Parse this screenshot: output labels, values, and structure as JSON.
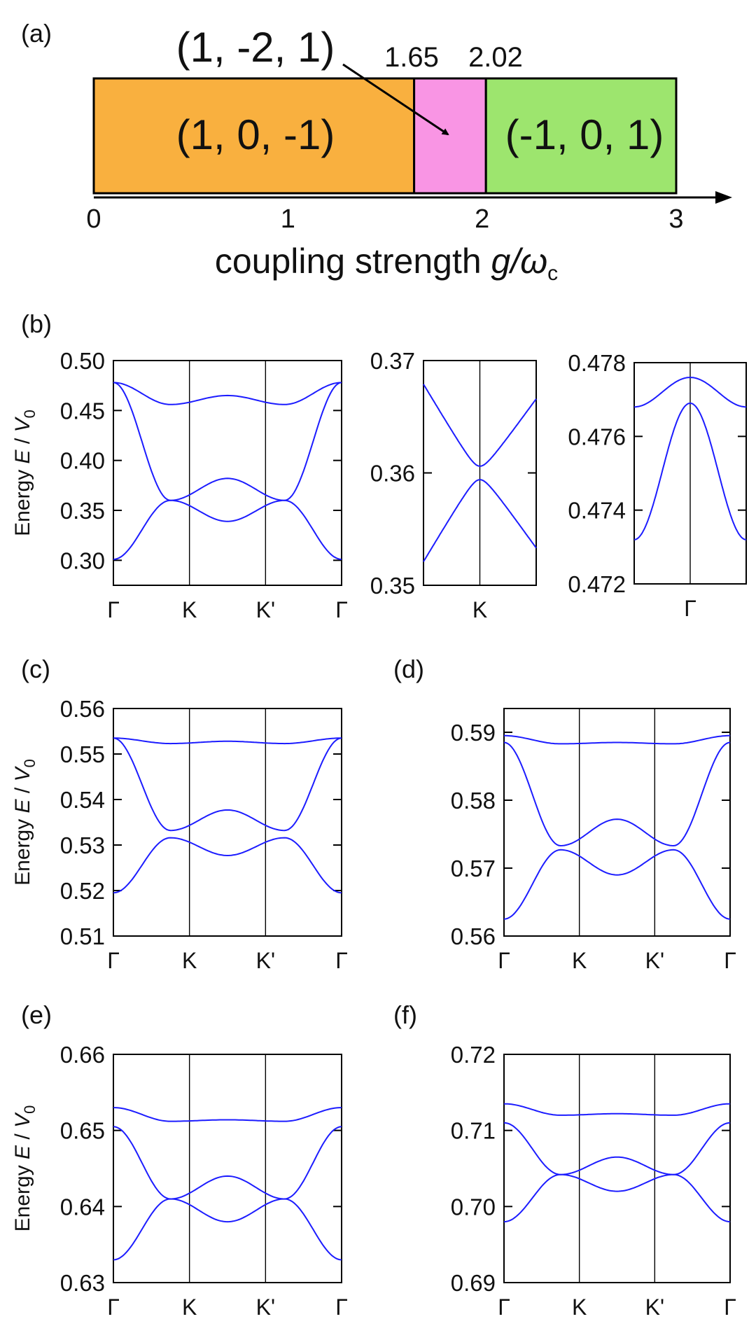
{
  "chart_data": [
    {
      "panel": "(a)",
      "type": "phase-bar",
      "xlabel_prefix": "coupling strength ",
      "xlabel_var": "g/ω",
      "xlabel_sub": "c",
      "xlim": [
        0,
        3
      ],
      "ticks": [
        "0",
        "1",
        "2",
        "3"
      ],
      "boundary_labels": [
        "1.65",
        "2.02"
      ],
      "regions": [
        {
          "from": 0,
          "to": 1.65,
          "label": "(1, 0, -1)",
          "color": "#f9b03f"
        },
        {
          "from": 1.65,
          "to": 2.02,
          "label": "(1, -2, 1)",
          "color": "#f995e4"
        },
        {
          "from": 2.02,
          "to": 3.0,
          "label": "(-1, 0, 1)",
          "color": "#9de56e"
        }
      ]
    },
    {
      "panel": "(b)",
      "type": "line",
      "ylabel": "Energy E / V0",
      "ylim": [
        0.275,
        0.5
      ],
      "yticks": [
        "0.30",
        "0.35",
        "0.40",
        "0.45",
        "0.50"
      ],
      "xticks": [
        "Γ",
        "K",
        "K'",
        "Γ"
      ],
      "series": [
        {
          "values": [
            0.478,
            0.456,
            0.465,
            0.456,
            0.478
          ]
        },
        {
          "values": [
            0.478,
            0.36,
            0.382,
            0.36,
            0.478
          ]
        },
        {
          "values": [
            0.301,
            0.36,
            0.339,
            0.36,
            0.301
          ]
        }
      ]
    },
    {
      "panel": "(b) inset K",
      "type": "line",
      "ylim": [
        0.35,
        0.37
      ],
      "yticks": [
        "0.35",
        "0.36",
        "0.37"
      ],
      "xticks": [
        "K"
      ],
      "series": [
        {
          "values": [
            0.369,
            0.3606,
            0.3675
          ]
        },
        {
          "values": [
            0.351,
            0.3594,
            0.3524
          ]
        }
      ]
    },
    {
      "panel": "(b) inset Γ",
      "type": "line",
      "ylim": [
        0.472,
        0.478
      ],
      "yticks": [
        "0.472",
        "0.474",
        "0.476",
        "0.478"
      ],
      "xticks": [
        "Γ"
      ],
      "series": [
        {
          "values": [
            0.4768,
            0.4776,
            0.4768
          ]
        },
        {
          "values": [
            0.4732,
            0.4769,
            0.4732
          ]
        }
      ]
    },
    {
      "panel": "(c)",
      "type": "line",
      "ylabel": "Energy E / V0",
      "ylim": [
        0.51,
        0.56
      ],
      "yticks": [
        "0.51",
        "0.52",
        "0.53",
        "0.54",
        "0.55",
        "0.56"
      ],
      "xticks": [
        "Γ",
        "K",
        "K'",
        "Γ"
      ],
      "series": [
        {
          "values": [
            0.5535,
            0.5523,
            0.5528,
            0.5523,
            0.5535
          ]
        },
        {
          "values": [
            0.5535,
            0.5332,
            0.5377,
            0.5332,
            0.5535
          ]
        },
        {
          "values": [
            0.5195,
            0.5316,
            0.5277,
            0.5316,
            0.5195
          ]
        }
      ]
    },
    {
      "panel": "(d)",
      "type": "line",
      "ylim": [
        0.56,
        0.5935
      ],
      "yticks": [
        "0.56",
        "0.57",
        "0.58",
        "0.59"
      ],
      "xticks": [
        "Γ",
        "K",
        "K'",
        "Γ"
      ],
      "series": [
        {
          "values": [
            0.5895,
            0.5883,
            0.5885,
            0.5883,
            0.5895
          ]
        },
        {
          "values": [
            0.5885,
            0.5733,
            0.5772,
            0.5733,
            0.5885
          ]
        },
        {
          "values": [
            0.5625,
            0.5727,
            0.569,
            0.5727,
            0.5625
          ]
        }
      ]
    },
    {
      "panel": "(e)",
      "type": "line",
      "ylabel": "Energy E / V0",
      "ylim": [
        0.63,
        0.66
      ],
      "yticks": [
        "0.63",
        "0.64",
        "0.65",
        "0.66"
      ],
      "xticks": [
        "Γ",
        "K",
        "K'",
        "Γ"
      ],
      "series": [
        {
          "values": [
            0.653,
            0.6512,
            0.6514,
            0.6512,
            0.653
          ]
        },
        {
          "values": [
            0.6505,
            0.641,
            0.644,
            0.641,
            0.6505
          ]
        },
        {
          "values": [
            0.633,
            0.641,
            0.638,
            0.641,
            0.633
          ]
        }
      ]
    },
    {
      "panel": "(f)",
      "type": "line",
      "ylim": [
        0.69,
        0.72
      ],
      "yticks": [
        "0.69",
        "0.70",
        "0.71",
        "0.72"
      ],
      "xticks": [
        "Γ",
        "K",
        "K'",
        "Γ"
      ],
      "series": [
        {
          "values": [
            0.7135,
            0.712,
            0.7122,
            0.712,
            0.7135
          ]
        },
        {
          "values": [
            0.711,
            0.7042,
            0.7065,
            0.7042,
            0.711
          ]
        },
        {
          "values": [
            0.698,
            0.7042,
            0.702,
            0.7042,
            0.698
          ]
        }
      ]
    }
  ]
}
